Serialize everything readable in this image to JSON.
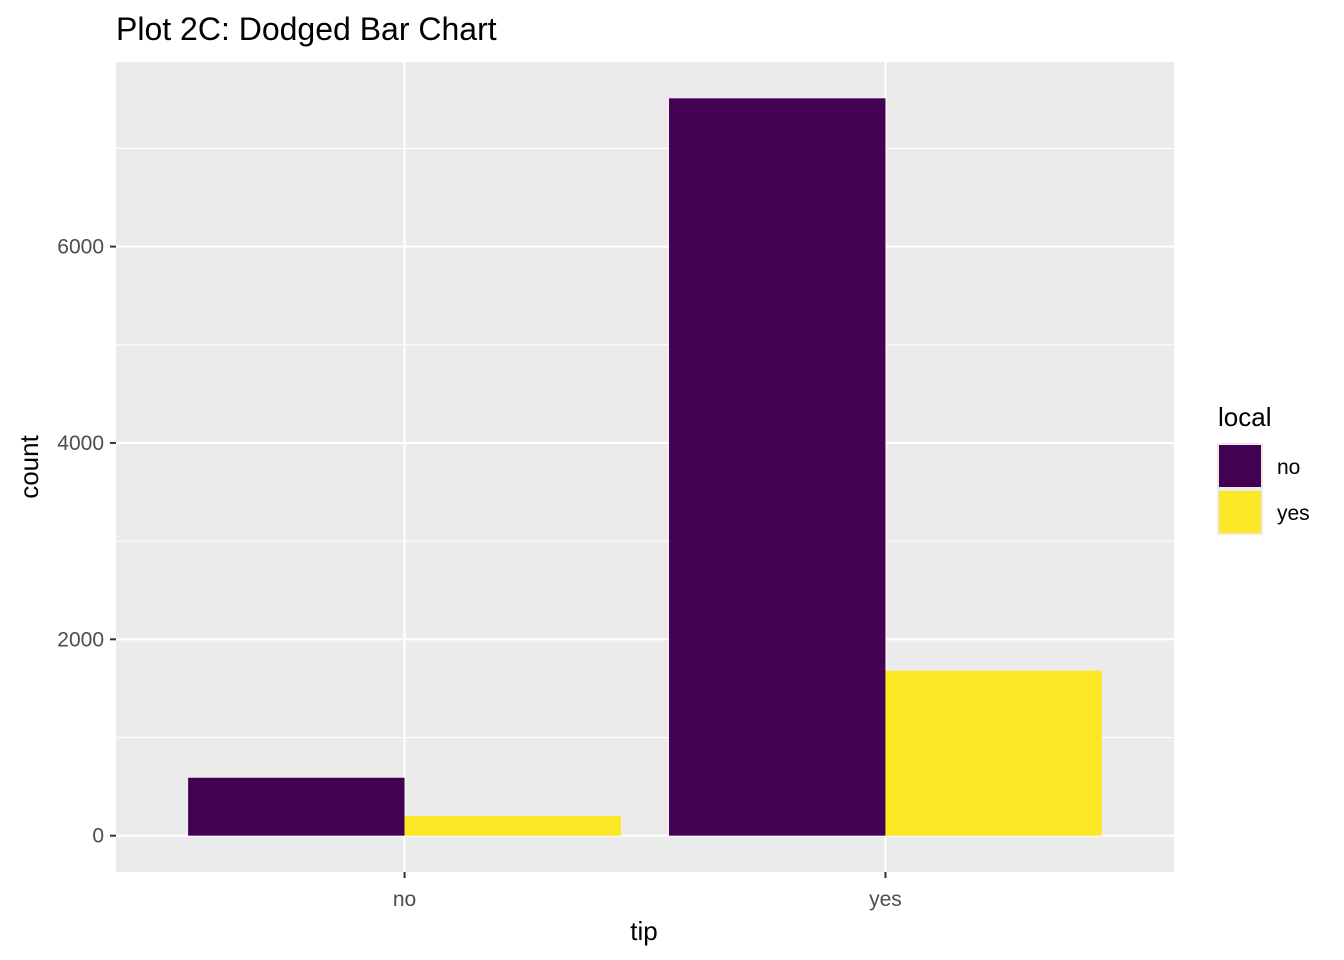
{
  "chart_data": {
    "type": "bar",
    "layout": "dodged",
    "title": "Plot 2C: Dodged Bar Chart",
    "xlabel": "tip",
    "ylabel": "count",
    "categories": [
      "no",
      "yes"
    ],
    "series": [
      {
        "name": "no",
        "color": "#440154",
        "values": [
          590,
          7510
        ]
      },
      {
        "name": "yes",
        "color": "#FDE725",
        "values": [
          200,
          1680
        ]
      }
    ],
    "ylim": [
      -370,
      7880
    ],
    "y_ticks": [
      0,
      2000,
      4000,
      6000
    ],
    "y_tick_labels": [
      "0",
      "2000",
      "4000",
      "6000"
    ],
    "legend": {
      "title": "local",
      "position": "right"
    },
    "grid": true,
    "panel_background": "#EBEBEB",
    "grid_color": "#FFFFFF"
  }
}
